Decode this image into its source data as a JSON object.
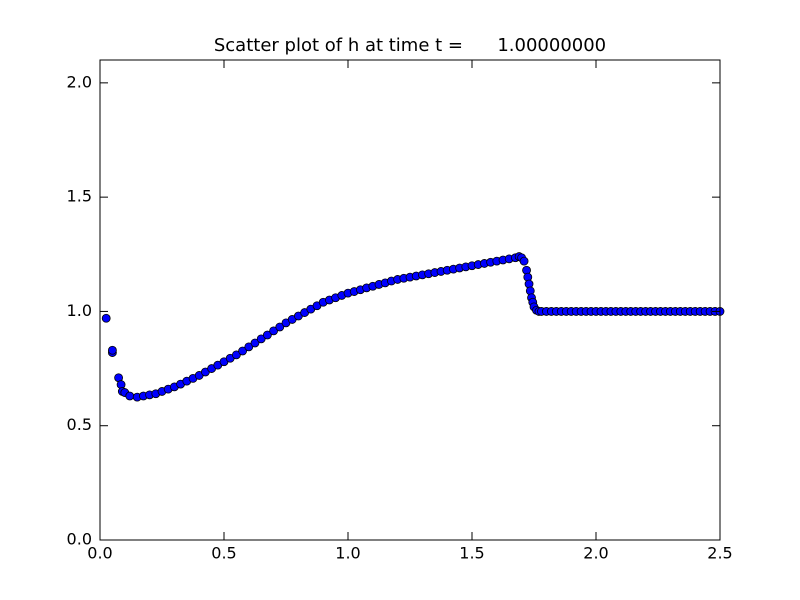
{
  "chart_data": {
    "type": "scatter",
    "title": "Scatter plot of h at time t =      1.00000000",
    "color": "#0000ff",
    "edgecolor": "#000000",
    "x": [
      0.025,
      0.05,
      0.05,
      0.075,
      0.085,
      0.09,
      0.1,
      0.12,
      0.15,
      0.175,
      0.2,
      0.225,
      0.25,
      0.275,
      0.3,
      0.325,
      0.35,
      0.375,
      0.4,
      0.425,
      0.45,
      0.475,
      0.5,
      0.525,
      0.55,
      0.575,
      0.6,
      0.625,
      0.65,
      0.675,
      0.7,
      0.725,
      0.75,
      0.775,
      0.8,
      0.825,
      0.85,
      0.875,
      0.9,
      0.925,
      0.95,
      0.975,
      1.0,
      1.025,
      1.05,
      1.075,
      1.1,
      1.125,
      1.15,
      1.175,
      1.2,
      1.225,
      1.25,
      1.275,
      1.3,
      1.325,
      1.35,
      1.375,
      1.4,
      1.425,
      1.45,
      1.475,
      1.5,
      1.525,
      1.55,
      1.575,
      1.6,
      1.625,
      1.65,
      1.675,
      1.69,
      1.7,
      1.71,
      1.72,
      1.725,
      1.73,
      1.735,
      1.74,
      1.745,
      1.75,
      1.76,
      1.77,
      1.78,
      1.8,
      1.82,
      1.84,
      1.86,
      1.88,
      1.9,
      1.92,
      1.94,
      1.96,
      1.98,
      2.0,
      2.02,
      2.04,
      2.06,
      2.08,
      2.1,
      2.12,
      2.14,
      2.16,
      2.18,
      2.2,
      2.22,
      2.24,
      2.26,
      2.28,
      2.3,
      2.32,
      2.34,
      2.36,
      2.38,
      2.4,
      2.42,
      2.44,
      2.46,
      2.48,
      2.5
    ],
    "values": [
      0.97,
      0.82,
      0.83,
      0.71,
      0.68,
      0.65,
      0.645,
      0.63,
      0.625,
      0.63,
      0.635,
      0.64,
      0.65,
      0.66,
      0.67,
      0.682,
      0.695,
      0.707,
      0.72,
      0.735,
      0.75,
      0.765,
      0.78,
      0.795,
      0.81,
      0.827,
      0.845,
      0.862,
      0.88,
      0.897,
      0.915,
      0.932,
      0.95,
      0.965,
      0.98,
      0.995,
      1.01,
      1.025,
      1.04,
      1.05,
      1.06,
      1.07,
      1.08,
      1.087,
      1.095,
      1.103,
      1.11,
      1.118,
      1.125,
      1.133,
      1.14,
      1.145,
      1.15,
      1.155,
      1.16,
      1.165,
      1.17,
      1.175,
      1.18,
      1.185,
      1.19,
      1.195,
      1.2,
      1.205,
      1.21,
      1.215,
      1.22,
      1.225,
      1.23,
      1.235,
      1.24,
      1.235,
      1.22,
      1.18,
      1.15,
      1.12,
      1.09,
      1.06,
      1.04,
      1.02,
      1.005,
      1.0,
      1.0,
      1.0,
      1.0,
      1.0,
      1.0,
      1.0,
      1.0,
      1.0,
      1.0,
      1.0,
      1.0,
      1.0,
      1.0,
      1.0,
      1.0,
      1.0,
      1.0,
      1.0,
      1.0,
      1.0,
      1.0,
      1.0,
      1.0,
      1.0,
      1.0,
      1.0,
      1.0,
      1.0,
      1.0,
      1.0,
      1.0,
      1.0,
      1.0,
      1.0,
      1.0,
      1.0,
      1.0
    ],
    "xlim": [
      0,
      2.5
    ],
    "xticks": [
      {
        "value": 0,
        "label": "0.0"
      },
      {
        "value": 0.5,
        "label": "0.5"
      },
      {
        "value": 1,
        "label": "1.0"
      },
      {
        "value": 1.5,
        "label": "1.5"
      },
      {
        "value": 2,
        "label": "2.0"
      },
      {
        "value": 2.5,
        "label": "2.5"
      }
    ],
    "ylim": [
      0,
      2.1
    ],
    "yticks": [
      {
        "value": 0,
        "label": "0.0"
      },
      {
        "value": 0.5,
        "label": "0.5"
      },
      {
        "value": 1,
        "label": "1.0"
      },
      {
        "value": 1.5,
        "label": "1.5"
      },
      {
        "value": 2,
        "label": "2.0"
      }
    ]
  }
}
